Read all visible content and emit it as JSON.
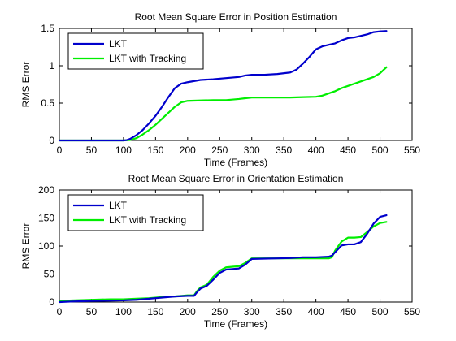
{
  "chart_data": [
    {
      "type": "line",
      "title": "Root Mean Square Error in Position Estimation",
      "xlabel": "Time (Frames)",
      "ylabel": "RMS Error",
      "xlim": [
        0,
        550
      ],
      "ylim": [
        0,
        1.5
      ],
      "xticks": [
        0,
        50,
        100,
        150,
        200,
        250,
        300,
        350,
        400,
        450,
        500,
        550
      ],
      "yticks": [
        0,
        0.5,
        1,
        1.5
      ],
      "ytick_labels": [
        "0",
        "0.5",
        "1",
        "1.5"
      ],
      "legend_position": "top-left",
      "grid": false,
      "series": [
        {
          "name": "LKT",
          "color": "#0000cc",
          "x": [
            0,
            100,
            105,
            110,
            120,
            130,
            140,
            150,
            160,
            170,
            180,
            190,
            200,
            220,
            240,
            260,
            280,
            290,
            300,
            320,
            340,
            360,
            370,
            380,
            390,
            400,
            410,
            420,
            430,
            440,
            450,
            460,
            470,
            480,
            490,
            500,
            510
          ],
          "y": [
            0,
            0,
            0.005,
            0.02,
            0.07,
            0.14,
            0.23,
            0.33,
            0.45,
            0.58,
            0.7,
            0.76,
            0.78,
            0.81,
            0.82,
            0.835,
            0.85,
            0.87,
            0.88,
            0.88,
            0.89,
            0.91,
            0.95,
            1.03,
            1.12,
            1.22,
            1.26,
            1.28,
            1.3,
            1.34,
            1.37,
            1.38,
            1.4,
            1.42,
            1.45,
            1.46,
            1.465
          ]
        },
        {
          "name": "LKT with Tracking",
          "color": "#00ee00",
          "x": [
            0,
            100,
            110,
            120,
            130,
            140,
            150,
            160,
            170,
            180,
            190,
            200,
            220,
            240,
            260,
            280,
            290,
            300,
            320,
            340,
            360,
            380,
            400,
            410,
            420,
            430,
            440,
            450,
            460,
            470,
            480,
            490,
            500,
            510
          ],
          "y": [
            0,
            0,
            0.005,
            0.03,
            0.08,
            0.14,
            0.21,
            0.29,
            0.37,
            0.45,
            0.51,
            0.53,
            0.535,
            0.54,
            0.54,
            0.555,
            0.565,
            0.575,
            0.575,
            0.575,
            0.575,
            0.58,
            0.585,
            0.6,
            0.63,
            0.66,
            0.7,
            0.73,
            0.76,
            0.79,
            0.82,
            0.85,
            0.9,
            0.98
          ]
        }
      ]
    },
    {
      "type": "line",
      "title": "Root Mean Square Error in Orientation Estimation",
      "xlabel": "Time (Frames)",
      "ylabel": "RMS Error",
      "xlim": [
        0,
        550
      ],
      "ylim": [
        0,
        200
      ],
      "xticks": [
        0,
        50,
        100,
        150,
        200,
        250,
        300,
        350,
        400,
        450,
        500,
        550
      ],
      "yticks": [
        0,
        50,
        100,
        150,
        200
      ],
      "ytick_labels": [
        "0",
        "50",
        "100",
        "150",
        "200"
      ],
      "legend_position": "top-left",
      "grid": false,
      "series": [
        {
          "name": "LKT",
          "color": "#0000cc",
          "x": [
            0,
            20,
            50,
            80,
            100,
            120,
            140,
            160,
            180,
            200,
            210,
            215,
            220,
            230,
            240,
            250,
            260,
            270,
            280,
            290,
            300,
            320,
            340,
            360,
            380,
            400,
            410,
            420,
            425,
            430,
            440,
            450,
            460,
            470,
            480,
            490,
            500,
            510
          ],
          "y": [
            0,
            1,
            2,
            2.5,
            3,
            4,
            6,
            8,
            10,
            11,
            11,
            18,
            24,
            29,
            40,
            52,
            58,
            59,
            60,
            67,
            77,
            77.5,
            78,
            78.5,
            80,
            80,
            80.5,
            81,
            83,
            89,
            101,
            103,
            103,
            107,
            122,
            140,
            152,
            155
          ]
        },
        {
          "name": "LKT with Tracking",
          "color": "#00ee00",
          "x": [
            0,
            20,
            50,
            80,
            100,
            120,
            140,
            160,
            180,
            200,
            210,
            215,
            220,
            230,
            240,
            250,
            260,
            270,
            280,
            290,
            300,
            320,
            340,
            360,
            380,
            400,
            410,
            420,
            425,
            430,
            440,
            450,
            460,
            470,
            480,
            490,
            500,
            510
          ],
          "y": [
            2,
            3,
            4,
            5,
            5,
            6,
            7,
            9,
            10,
            12,
            12,
            20,
            26,
            31,
            45,
            56,
            62,
            63,
            64,
            70,
            78,
            78,
            78,
            78,
            78,
            78,
            78,
            78,
            80,
            92,
            108,
            115,
            115,
            116,
            125,
            135,
            141,
            143
          ]
        }
      ]
    }
  ]
}
